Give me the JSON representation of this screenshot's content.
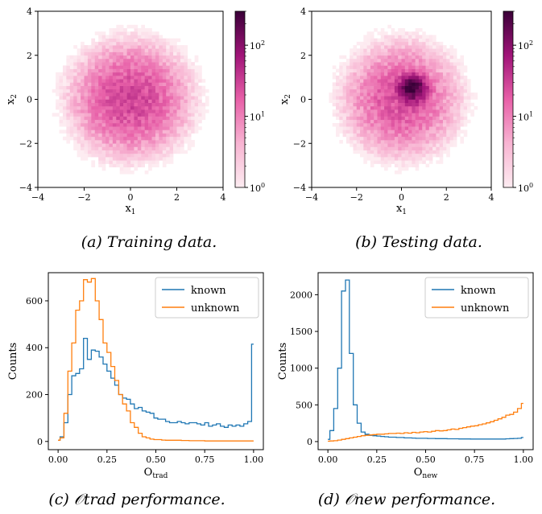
{
  "captions": {
    "a": "(a) Training data.",
    "b": "(b) Testing data.",
    "c": "(c) 𝒪trad performance.",
    "d": "(d) 𝒪new performance."
  },
  "colors": {
    "known": "#1f77b4",
    "unknown": "#ff7f0e",
    "cmap_low": "#fde0ef",
    "cmap_high": "#3a0038"
  },
  "chart_data": [
    {
      "type": "heatmap",
      "panel": "a",
      "xlabel": "x1",
      "ylabel": "x2",
      "xlim": [
        -4,
        4
      ],
      "ylim": [
        -4,
        4
      ],
      "xticks": [
        "−4",
        "−2",
        "0",
        "2",
        "4"
      ],
      "yticks": [
        "−4",
        "−2",
        "0",
        "2",
        "4"
      ],
      "colorbar": {
        "scale": "log",
        "range": [
          1,
          300
        ],
        "ticks": [
          "10^0",
          "10^1",
          "10^2"
        ]
      },
      "distribution": {
        "center": [
          0,
          0
        ],
        "std": 1.2,
        "peak_count": 30
      }
    },
    {
      "type": "heatmap",
      "panel": "b",
      "xlabel": "x1",
      "ylabel": "x2",
      "xlim": [
        -4,
        4
      ],
      "ylim": [
        -4,
        4
      ],
      "xticks": [
        "−4",
        "−2",
        "0",
        "2",
        "4"
      ],
      "yticks": [
        "−4",
        "−2",
        "0",
        "2",
        "4"
      ],
      "colorbar": {
        "scale": "log",
        "range": [
          1,
          300
        ],
        "ticks": [
          "10^0",
          "10^1",
          "10^2"
        ]
      },
      "distribution": {
        "center": [
          0,
          0
        ],
        "std": 1.2,
        "peak_count": 25,
        "cluster_center": [
          0.5,
          0.5
        ],
        "cluster_std": 0.3,
        "cluster_peak": 280
      }
    },
    {
      "type": "line",
      "panel": "c",
      "xlabel": "Otrad",
      "ylabel": "Counts",
      "xlim": [
        -0.05,
        1.05
      ],
      "ylim": [
        -35,
        720
      ],
      "xticks": [
        "0.00",
        "0.25",
        "0.50",
        "0.75",
        "1.00"
      ],
      "yticks": [
        "0",
        "200",
        "400",
        "600"
      ],
      "legend": "top-right",
      "x": [
        0.0,
        0.02,
        0.04,
        0.06,
        0.08,
        0.1,
        0.12,
        0.14,
        0.16,
        0.18,
        0.2,
        0.22,
        0.24,
        0.26,
        0.28,
        0.3,
        0.32,
        0.34,
        0.36,
        0.38,
        0.4,
        0.42,
        0.44,
        0.46,
        0.48,
        0.5,
        0.52,
        0.54,
        0.56,
        0.58,
        0.6,
        0.62,
        0.64,
        0.66,
        0.68,
        0.7,
        0.72,
        0.74,
        0.76,
        0.78,
        0.8,
        0.82,
        0.84,
        0.86,
        0.88,
        0.9,
        0.92,
        0.94,
        0.96,
        0.98,
        1.0
      ],
      "series": [
        {
          "name": "known",
          "values": [
            5,
            20,
            80,
            200,
            280,
            290,
            310,
            440,
            350,
            390,
            385,
            360,
            330,
            300,
            270,
            240,
            200,
            185,
            180,
            160,
            140,
            145,
            130,
            125,
            120,
            100,
            95,
            95,
            85,
            80,
            80,
            85,
            80,
            75,
            80,
            80,
            75,
            70,
            80,
            65,
            70,
            75,
            65,
            60,
            70,
            65,
            70,
            65,
            75,
            85,
            415
          ]
        },
        {
          "name": "unknown",
          "values": [
            5,
            15,
            120,
            300,
            420,
            560,
            600,
            690,
            680,
            695,
            600,
            520,
            420,
            380,
            320,
            260,
            200,
            160,
            130,
            80,
            60,
            35,
            20,
            15,
            10,
            8,
            8,
            6,
            5,
            5,
            5,
            5,
            4,
            4,
            3,
            3,
            3,
            3,
            2,
            2,
            2,
            2,
            2,
            2,
            2,
            2,
            2,
            2,
            2,
            2,
            2
          ]
        }
      ]
    },
    {
      "type": "line",
      "panel": "d",
      "xlabel": "Onew",
      "ylabel": "Counts",
      "xlim": [
        -0.05,
        1.05
      ],
      "ylim": [
        -110,
        2300
      ],
      "xticks": [
        "0.00",
        "0.25",
        "0.50",
        "0.75",
        "1.00"
      ],
      "yticks": [
        "0",
        "500",
        "1000",
        "1500",
        "2000"
      ],
      "legend": "top-right",
      "x": [
        0.0,
        0.02,
        0.04,
        0.06,
        0.08,
        0.1,
        0.12,
        0.14,
        0.16,
        0.18,
        0.2,
        0.22,
        0.24,
        0.26,
        0.28,
        0.3,
        0.32,
        0.34,
        0.36,
        0.38,
        0.4,
        0.42,
        0.44,
        0.46,
        0.48,
        0.5,
        0.52,
        0.54,
        0.56,
        0.58,
        0.6,
        0.62,
        0.64,
        0.66,
        0.68,
        0.7,
        0.72,
        0.74,
        0.76,
        0.78,
        0.8,
        0.82,
        0.84,
        0.86,
        0.88,
        0.9,
        0.92,
        0.94,
        0.96,
        0.98,
        1.0
      ],
      "series": [
        {
          "name": "known",
          "values": [
            30,
            150,
            450,
            1000,
            2050,
            2200,
            1200,
            500,
            250,
            130,
            100,
            85,
            80,
            75,
            70,
            65,
            60,
            60,
            55,
            55,
            50,
            50,
            48,
            45,
            45,
            45,
            42,
            42,
            40,
            40,
            40,
            38,
            38,
            38,
            36,
            36,
            36,
            35,
            35,
            35,
            35,
            35,
            35,
            35,
            35,
            35,
            38,
            40,
            42,
            45,
            55
          ]
        },
        {
          "name": "unknown",
          "values": [
            5,
            8,
            12,
            20,
            30,
            40,
            50,
            60,
            70,
            80,
            85,
            90,
            95,
            100,
            100,
            105,
            110,
            110,
            115,
            110,
            120,
            115,
            125,
            120,
            130,
            135,
            130,
            140,
            150,
            145,
            150,
            160,
            170,
            165,
            180,
            190,
            200,
            210,
            215,
            230,
            240,
            255,
            270,
            290,
            310,
            330,
            360,
            370,
            400,
            450,
            520
          ]
        }
      ]
    }
  ]
}
